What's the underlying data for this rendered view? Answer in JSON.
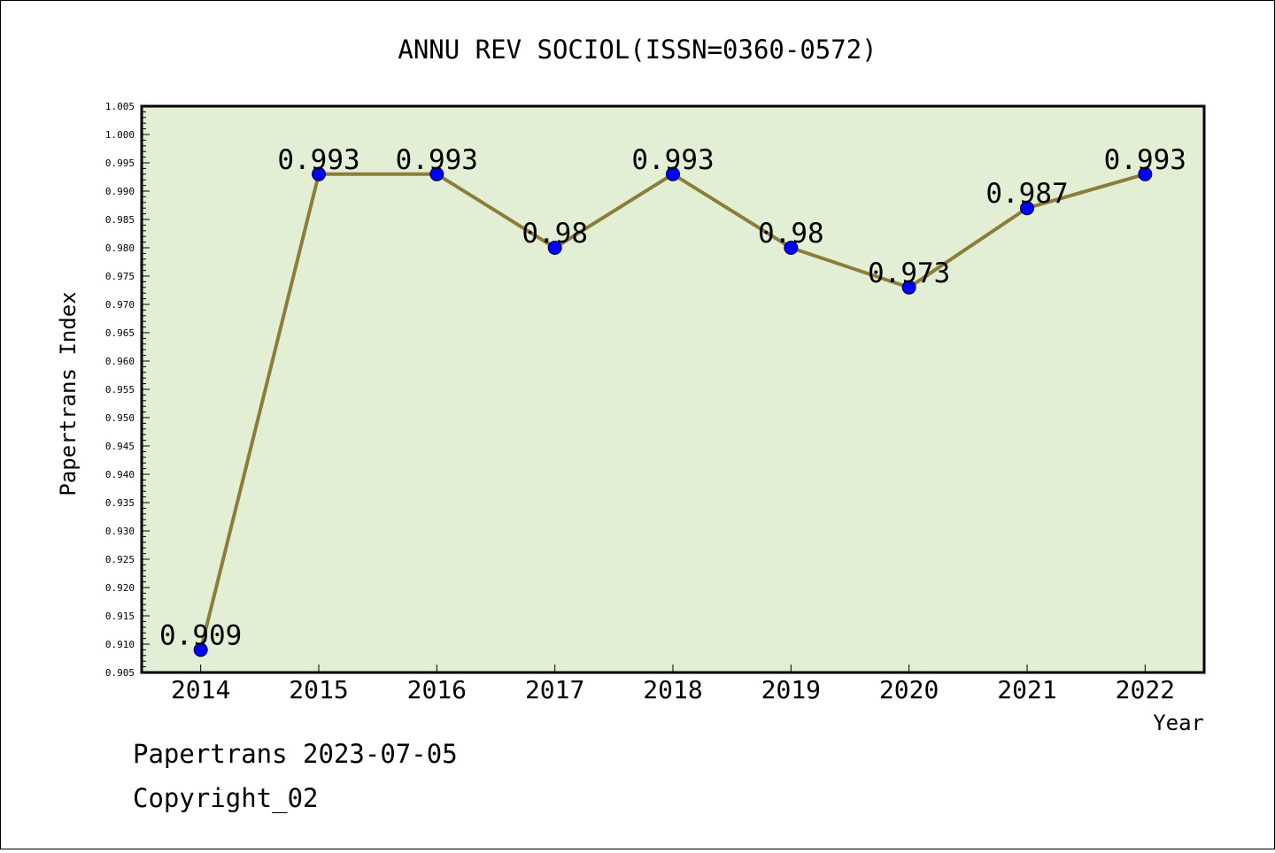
{
  "chart_data": {
    "type": "line",
    "title": "ANNU REV SOCIOL(ISSN=0360-0572)",
    "xlabel": "Year",
    "ylabel": "Papertrans Index",
    "categories": [
      "2014",
      "2015",
      "2016",
      "2017",
      "2018",
      "2019",
      "2020",
      "2021",
      "2022"
    ],
    "series": [
      {
        "values": [
          0.909,
          0.993,
          0.993,
          0.98,
          0.993,
          0.98,
          0.973,
          0.987,
          0.993
        ]
      }
    ],
    "data_labels": [
      "0.909",
      "0.993",
      "0.993",
      "0.98",
      "0.993",
      "0.98",
      "0.973",
      "0.987",
      "0.993"
    ],
    "ylim": [
      0.905,
      1.005
    ],
    "ytick_step": 0.005,
    "grid": false,
    "colors": {
      "plot_background": "#e2efd5",
      "line": "#8b7d3a",
      "marker": "#0000ff",
      "axis": "#000000"
    }
  },
  "footer": {
    "date_line": "Papertrans 2023-07-05",
    "copyright_line": "Copyright_02"
  }
}
